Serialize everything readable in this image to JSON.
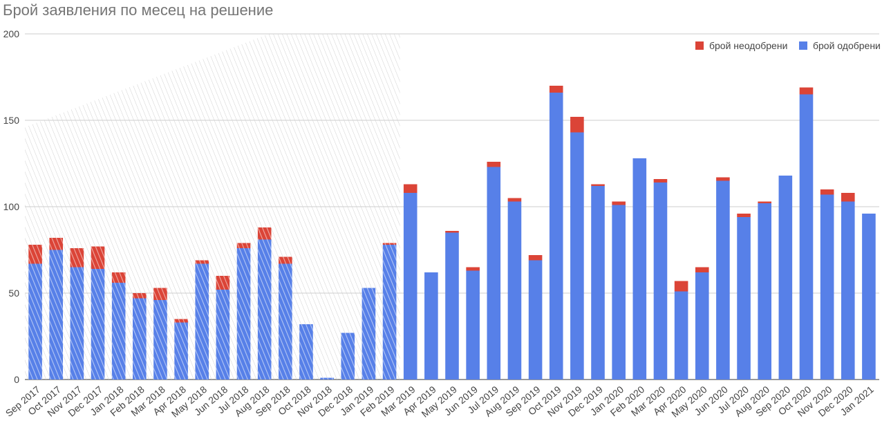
{
  "chart_data": {
    "type": "bar",
    "stacked": true,
    "title": "Брой заявления по месец на решение",
    "xlabel": "",
    "ylabel": "",
    "ylim": [
      0,
      200
    ],
    "yticks": [
      0,
      50,
      100,
      150,
      200
    ],
    "grid": true,
    "legend_position": "top-right",
    "shaded_region": {
      "from": "Sep 2017",
      "to": "Feb 2019",
      "style": "hatched"
    },
    "categories": [
      "Sep 2017",
      "Oct 2017",
      "Nov 2017",
      "Dec 2017",
      "Jan 2018",
      "Feb 2018",
      "Mar 2018",
      "Apr 2018",
      "May 2018",
      "Jun 2018",
      "Jul 2018",
      "Aug 2018",
      "Sep 2018",
      "Oct 2018",
      "Nov 2018",
      "Dec 2018",
      "Jan 2019",
      "Feb 2019",
      "Mar 2019",
      "Apr 2019",
      "May 2019",
      "Jun 2019",
      "Jul 2019",
      "Aug 2019",
      "Sep 2019",
      "Oct 2019",
      "Nov 2019",
      "Dec 2019",
      "Jan 2020",
      "Feb 2020",
      "Mar 2020",
      "Apr 2020",
      "May 2020",
      "Jun 2020",
      "Jul 2020",
      "Aug 2020",
      "Sep 2020",
      "Oct 2020",
      "Nov 2020",
      "Dec 2020",
      "Jan 2021"
    ],
    "series": [
      {
        "name": "брой одобрени",
        "color": "#5780e8",
        "values": [
          67,
          75,
          65,
          64,
          56,
          47,
          46,
          33,
          67,
          52,
          76,
          81,
          67,
          32,
          1,
          27,
          53,
          78,
          108,
          62,
          85,
          63,
          123,
          103,
          69,
          166,
          143,
          112,
          101,
          128,
          114,
          51,
          62,
          115,
          94,
          102,
          118,
          165,
          107,
          103,
          96
        ]
      },
      {
        "name": "брой неодобрени",
        "color": "#db4437",
        "values": [
          11,
          7,
          11,
          13,
          6,
          3,
          7,
          2,
          2,
          8,
          3,
          7,
          4,
          0,
          0,
          0,
          0,
          1,
          5,
          0,
          1,
          2,
          3,
          2,
          3,
          4,
          9,
          1,
          2,
          0,
          2,
          6,
          3,
          2,
          2,
          1,
          0,
          4,
          3,
          5,
          0
        ]
      }
    ]
  }
}
